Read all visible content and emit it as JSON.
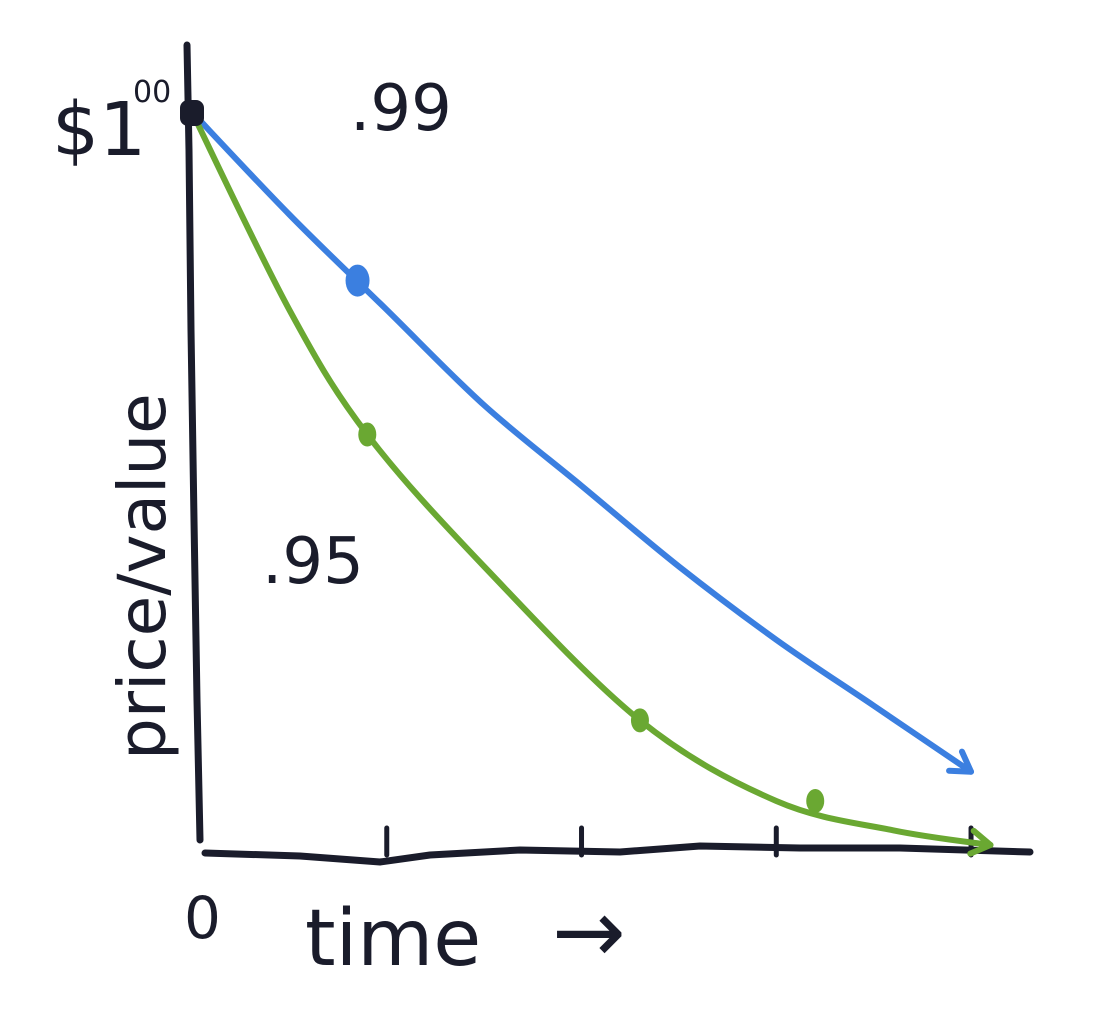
{
  "chart_data": {
    "type": "line",
    "title": "",
    "xlabel": "time",
    "xlabel_arrow": "→",
    "ylabel": "price/value",
    "x_origin_label": "0",
    "y_top_label": "$1",
    "y_top_label_sup": "00",
    "xlim": [
      0,
      4.2
    ],
    "ylim": [
      0,
      1
    ],
    "x_ticks": [
      1,
      2,
      3,
      4
    ],
    "grid": false,
    "legend": "none",
    "series": [
      {
        "name": ".99",
        "color": "#3b7fe0",
        "x": [
          0,
          0.5,
          1,
          1.5,
          2,
          2.5,
          3,
          3.5,
          4.0
        ],
        "y": [
          1.0,
          0.86,
          0.73,
          0.6,
          0.49,
          0.38,
          0.28,
          0.19,
          0.1
        ],
        "markers_x": [
          0.85
        ],
        "markers_y": [
          0.77
        ]
      },
      {
        "name": ".95",
        "color": "#6aa832",
        "x": [
          0,
          0.5,
          0.9,
          1.5,
          2.3,
          3,
          3.6,
          4.1
        ],
        "y": [
          1.0,
          0.73,
          0.56,
          0.38,
          0.17,
          0.06,
          0.02,
          0.0
        ],
        "markers_x": [
          0.9,
          2.3,
          3.2
        ],
        "markers_y": [
          0.56,
          0.17,
          0.06
        ]
      }
    ],
    "origin_point": {
      "x": 0,
      "y": 1.0,
      "color": "#1a1c2b"
    }
  }
}
